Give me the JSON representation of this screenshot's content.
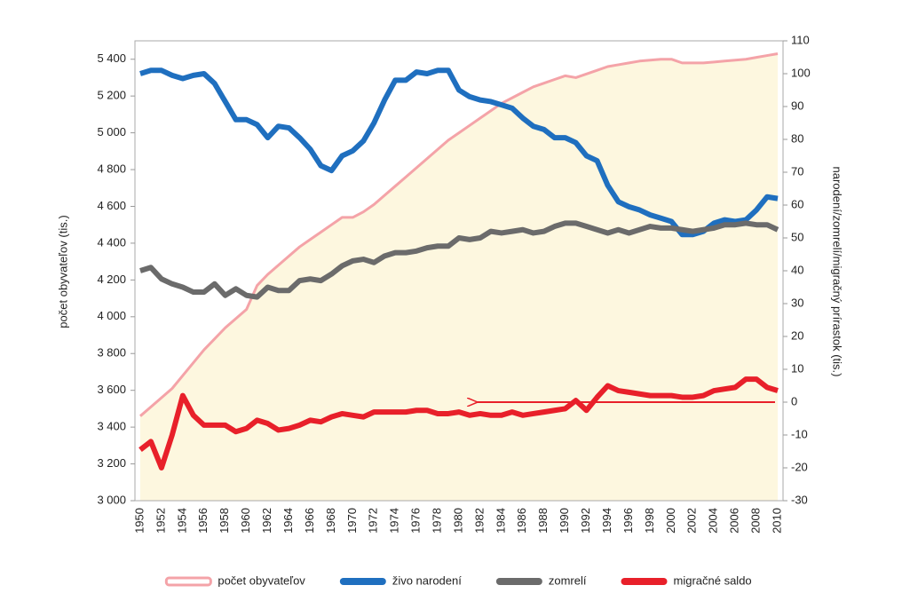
{
  "chart_data": {
    "type": "line",
    "y_label": "počet obyvateľov (tis.)",
    "y2_label": "narodení/zomrelí/migračný prírastok (tis.)",
    "categories": [
      "1950",
      null,
      "1952",
      null,
      "1954",
      null,
      "1956",
      null,
      "1958",
      null,
      "1960",
      null,
      "1962",
      null,
      "1964",
      null,
      "1966",
      null,
      "1968",
      null,
      "1970",
      null,
      "1972",
      null,
      "1974",
      null,
      "1976",
      null,
      "1978",
      null,
      "1980",
      null,
      "1982",
      null,
      "1984",
      null,
      "1986",
      null,
      "1988",
      null,
      "1990",
      null,
      "1992",
      null,
      "1994",
      null,
      "1996",
      null,
      "1998",
      null,
      "2000",
      null,
      "2002",
      null,
      "2004",
      null,
      "2006",
      null,
      "2008",
      null,
      "2010"
    ],
    "ylim": [
      3000,
      5500
    ],
    "yticks": [
      {
        "value": 3000,
        "label": "3 000"
      },
      {
        "value": 3200,
        "label": "3 200"
      },
      {
        "value": 3400,
        "label": "3 400"
      },
      {
        "value": 3600,
        "label": "3 600"
      },
      {
        "value": 3800,
        "label": "3 800"
      },
      {
        "value": 4000,
        "label": "4 000"
      },
      {
        "value": 4200,
        "label": "4 200"
      },
      {
        "value": 4400,
        "label": "4 400"
      },
      {
        "value": 4600,
        "label": "4 600"
      },
      {
        "value": 4800,
        "label": "4 800"
      },
      {
        "value": 5000,
        "label": "5 000"
      },
      {
        "value": 5200,
        "label": "5 200"
      },
      {
        "value": 5400,
        "label": "5 400"
      }
    ],
    "y2lim": [
      -30,
      110
    ],
    "y2ticks": [
      -30,
      -20,
      -10,
      0,
      10,
      20,
      30,
      40,
      50,
      60,
      70,
      80,
      90,
      100,
      110
    ],
    "legend": "bottom",
    "series": [
      {
        "name": "počet obyvateľov",
        "color": "#f4a3a8",
        "area_color": "#fdf7df",
        "fill": true,
        "axis": "y",
        "values": [
          3460,
          3510,
          3560,
          3610,
          3680,
          3750,
          3820,
          3880,
          3940,
          3990,
          4040,
          4170,
          4230,
          4280,
          4330,
          4380,
          4420,
          4460,
          4500,
          4540,
          4540,
          4570,
          4610,
          4660,
          4710,
          4760,
          4810,
          4860,
          4910,
          4960,
          5000,
          5040,
          5080,
          5120,
          5160,
          5190,
          5220,
          5250,
          5270,
          5290,
          5310,
          5300,
          5320,
          5340,
          5360,
          5370,
          5380,
          5390,
          5395,
          5400,
          5400,
          5380,
          5380,
          5380,
          5385,
          5390,
          5395,
          5400,
          5410,
          5420,
          5430
        ]
      },
      {
        "name": "živo narodení",
        "color": "#1f6fbf",
        "axis": "y2",
        "values": [
          100,
          101,
          101,
          99.5,
          98.5,
          99.5,
          100,
          97,
          91.5,
          86,
          86,
          84.5,
          80.5,
          84,
          83.5,
          80.5,
          77,
          72,
          70.5,
          75,
          76.5,
          79.5,
          85,
          92,
          98,
          98,
          100.5,
          100,
          101,
          101,
          95,
          93,
          92,
          91.5,
          90.5,
          89.5,
          86.5,
          84,
          83,
          80.5,
          80.5,
          79,
          75,
          73.5,
          66,
          61,
          59.5,
          58.5,
          57,
          56,
          55,
          51,
          51,
          52,
          54.5,
          55.5,
          55,
          55.5,
          58.5,
          62.5,
          62
        ]
      },
      {
        "name": "zomrelí",
        "color": "#6b6b6b",
        "axis": "y2",
        "values": [
          40,
          41,
          37.5,
          36,
          35,
          33.5,
          33.5,
          36,
          32.5,
          34.5,
          32.5,
          32,
          35,
          34,
          34,
          37,
          37.5,
          37,
          39,
          41.5,
          43,
          43.5,
          42.5,
          44.5,
          45.5,
          45.5,
          46,
          47,
          47.5,
          47.5,
          50,
          49.5,
          50,
          52,
          51.5,
          52,
          52.5,
          51.5,
          52,
          53.5,
          54.5,
          54.5,
          53.5,
          52.5,
          51.5,
          52.5,
          51.5,
          52.5,
          53.5,
          53,
          53,
          52.5,
          52,
          52.5,
          53,
          54,
          54,
          54.5,
          54,
          54,
          52.5
        ]
      },
      {
        "name": "migračné saldo",
        "color": "#e8202a",
        "axis": "y2",
        "values": [
          -14.5,
          -12,
          -20,
          -10,
          2,
          -4,
          -7,
          -7,
          -7,
          -9,
          -8,
          -5.5,
          -6.5,
          -8.5,
          -8,
          -7,
          -5.5,
          -6,
          -4.5,
          -3.5,
          -4,
          -4.5,
          -3,
          -3,
          -3,
          -3,
          -2.5,
          -2.5,
          -3.5,
          -3.5,
          -3,
          -4,
          -3.5,
          -4,
          -4,
          -3,
          -4,
          -3.5,
          -3,
          -2.5,
          -2,
          0.5,
          -2.5,
          1.5,
          5,
          3.5,
          3,
          2.5,
          2,
          2,
          2,
          1.5,
          1.5,
          2,
          3.5,
          4,
          4.5,
          7,
          7,
          4.5,
          3.5
        ]
      }
    ]
  }
}
